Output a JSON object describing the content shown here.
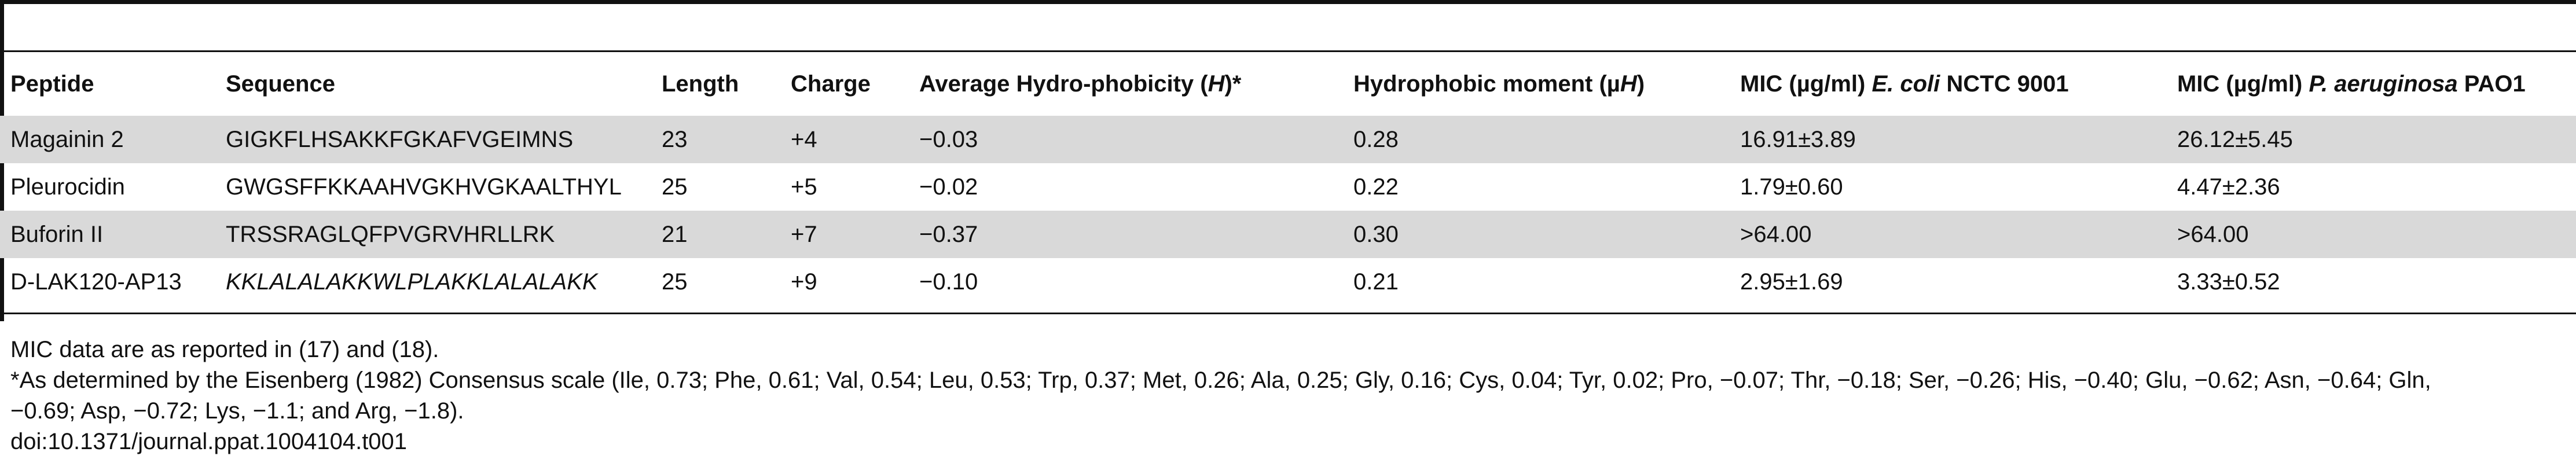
{
  "table": {
    "headers": [
      "Peptide",
      "Sequence",
      "Length",
      "Charge",
      "Average Hydro-phobicity (",
      "Hydrophobic moment (",
      "MIC (µg/ml) ",
      "MIC (µg/ml) "
    ],
    "header_extras": {
      "avg_h_symbol": "H",
      "avg_h_suffix": ")*",
      "moment_mu": "µ",
      "moment_symbol": "H",
      "moment_suffix": ")",
      "mic1_organism": "E. coli",
      "mic1_strain": " NCTC 9001",
      "mic2_organism": "P. aeruginosa",
      "mic2_strain": " PAO1"
    },
    "rows": [
      {
        "peptide": "Magainin 2",
        "sequence": "GIGKFLHSAKKFGKAFVGEIMNS",
        "length": "23",
        "charge": "+4",
        "avg_hydrophobicity": "−0.03",
        "hydrophobic_moment": "0.28",
        "mic_ecoli": "16.91±3.89",
        "mic_paeruginosa": "26.12±5.45"
      },
      {
        "peptide": "Pleurocidin",
        "sequence": "GWGSFFKKAAHVGKHVGKAALTHYL",
        "length": "25",
        "charge": "+5",
        "avg_hydrophobicity": "−0.02",
        "hydrophobic_moment": "0.22",
        "mic_ecoli": "1.79±0.60",
        "mic_paeruginosa": "4.47±2.36"
      },
      {
        "peptide": "Buforin II",
        "sequence": "TRSSRAGLQFPVGRVHRLLRK",
        "length": "21",
        "charge": "+7",
        "avg_hydrophobicity": "−0.37",
        "hydrophobic_moment": "0.30",
        "mic_ecoli": ">64.00",
        "mic_paeruginosa": ">64.00"
      },
      {
        "peptide": "D-LAK120-AP13",
        "sequence": "KKLALALAKKWLPLAKKLALALAKK",
        "length": "25",
        "charge": "+9",
        "avg_hydrophobicity": "−0.10",
        "hydrophobic_moment": "0.21",
        "mic_ecoli": "2.95±1.69",
        "mic_paeruginosa": "3.33±0.52"
      }
    ]
  },
  "footnotes": {
    "line1": "MIC data are as reported in (17) and (18).",
    "line2": "*As determined by the Eisenberg (1982) Consensus scale (Ile, 0.73; Phe, 0.61; Val, 0.54; Leu, 0.53; Trp, 0.37; Met, 0.26; Ala, 0.25; Gly, 0.16; Cys, 0.04; Tyr, 0.02; Pro, −0.07; Thr, −0.18; Ser, −0.26; His, −0.40; Glu, −0.62; Asn, −0.64; Gln,",
    "line3": "−0.69; Asp, −0.72; Lys, −1.1; and Arg, −1.8).",
    "doi": "doi:10.1371/journal.ppat.1004104.t001"
  }
}
